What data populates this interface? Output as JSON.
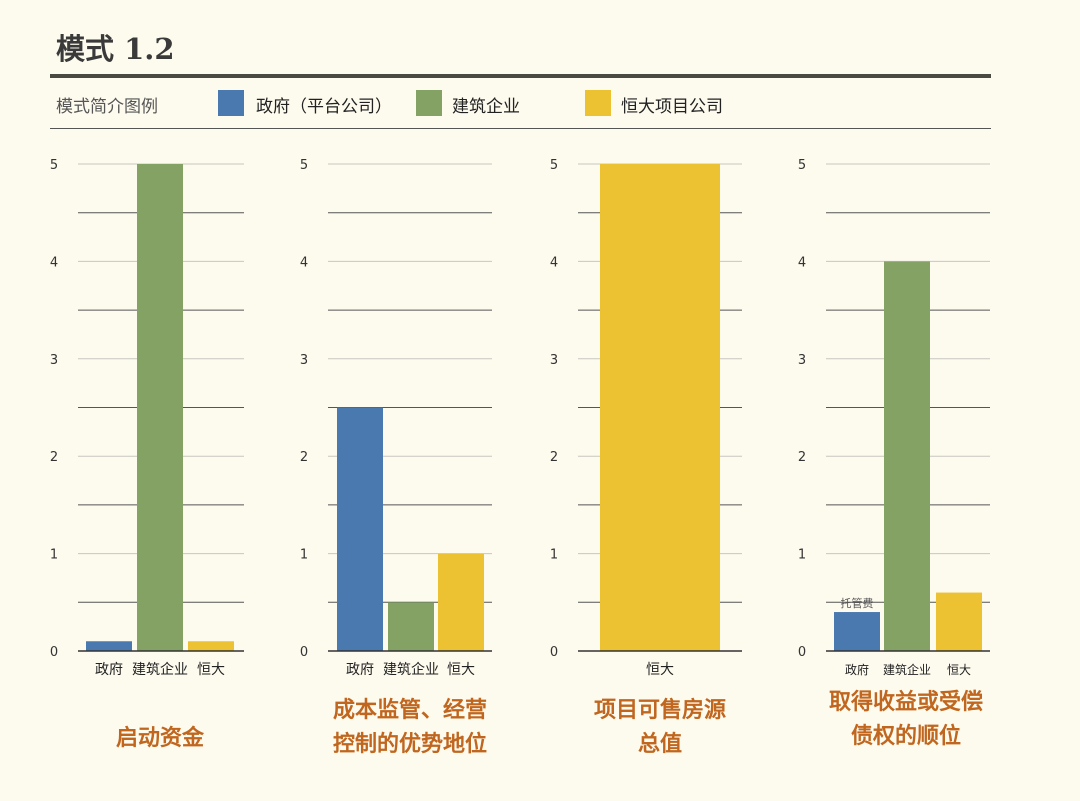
{
  "header": {
    "title": "模式 1.2"
  },
  "legend": {
    "label": "模式简介图例",
    "items": [
      {
        "name": "政府（平台公司）",
        "color": "#4a79b0"
      },
      {
        "name": "建筑企业",
        "color": "#84a264"
      },
      {
        "name": "恒大项目公司",
        "color": "#ecc232"
      }
    ]
  },
  "colors": {
    "government": "#4a79b0",
    "construction": "#84a264",
    "evergrande": "#ecc232",
    "caption": "#c0661e"
  },
  "chart_data": [
    {
      "type": "bar",
      "categories": [
        "政府",
        "建筑企业",
        "恒大"
      ],
      "values": [
        0.1,
        5,
        0.1
      ],
      "colors": [
        "#4a79b0",
        "#84a264",
        "#ecc232"
      ],
      "ylim": [
        0,
        5
      ],
      "yticks": [
        0,
        1,
        2,
        3,
        4,
        5
      ],
      "caption": [
        "启动资金"
      ],
      "annotation": ""
    },
    {
      "type": "bar",
      "categories": [
        "政府",
        "建筑企业",
        "恒大"
      ],
      "values": [
        2.5,
        0.5,
        1
      ],
      "colors": [
        "#4a79b0",
        "#84a264",
        "#ecc232"
      ],
      "ylim": [
        0,
        5
      ],
      "yticks": [
        0,
        1,
        2,
        3,
        4,
        5
      ],
      "caption": [
        "成本监管、经营",
        "控制的优势地位"
      ],
      "annotation": ""
    },
    {
      "type": "bar",
      "categories": [
        "恒大"
      ],
      "values": [
        5
      ],
      "colors": [
        "#ecc232"
      ],
      "ylim": [
        0,
        5
      ],
      "yticks": [
        0,
        1,
        2,
        3,
        4,
        5
      ],
      "caption": [
        "项目可售房源",
        "总值"
      ],
      "annotation": ""
    },
    {
      "type": "bar",
      "categories": [
        "政府",
        "建筑企业",
        "恒大"
      ],
      "values": [
        0.4,
        4,
        0.6
      ],
      "colors": [
        "#4a79b0",
        "#84a264",
        "#ecc232"
      ],
      "ylim": [
        0,
        5
      ],
      "yticks": [
        0,
        1,
        2,
        3,
        4,
        5
      ],
      "caption": [
        "取得收益或受偿",
        "债权的顺位"
      ],
      "annotation": "托管费"
    }
  ]
}
